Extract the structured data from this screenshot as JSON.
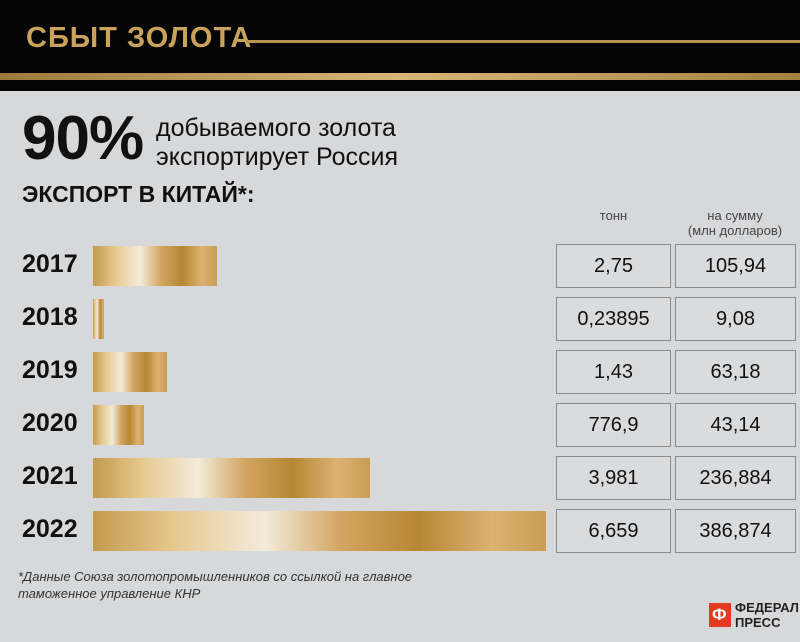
{
  "header": {
    "title": "СБЫТ ЗОЛОТА"
  },
  "headline": {
    "number": "90%",
    "line1": "добываемого золота",
    "line2": "экспортирует Россия"
  },
  "subtitle": "ЭКСПОРТ В КИТАЙ*:",
  "columns": {
    "tons": "тонн",
    "sum_line1": "на сумму",
    "sum_line2": "(млн долларов)"
  },
  "chart_data": {
    "type": "bar",
    "orientation": "horizontal",
    "title": "ЭКСПОРТ В КИТАЙ*:",
    "categories": [
      "2017",
      "2018",
      "2019",
      "2020",
      "2021",
      "2022"
    ],
    "series": [
      {
        "name": "на сумму (млн долларов)",
        "values": [
          105.94,
          9.08,
          63.18,
          43.14,
          236.884,
          386.874
        ]
      }
    ],
    "table": {
      "tons": [
        "2,75",
        "0,23895",
        "1,43",
        "776,9",
        "3,981",
        "6,659"
      ],
      "sum": [
        "105,94",
        "9,08",
        "63,18",
        "43,14",
        "236,884",
        "386,874"
      ]
    }
  },
  "rows": [
    {
      "year": "2017",
      "tons": "2,75",
      "sum": "105,94"
    },
    {
      "year": "2018",
      "tons": "0,23895",
      "sum": "9,08"
    },
    {
      "year": "2019",
      "tons": "1,43",
      "sum": "63,18"
    },
    {
      "year": "2020",
      "tons": "776,9",
      "sum": "43,14"
    },
    {
      "year": "2021",
      "tons": "3,981",
      "sum": "236,884"
    },
    {
      "year": "2022",
      "tons": "6,659",
      "sum": "386,874"
    }
  ],
  "footnote": {
    "line1": "*Данные Союза золотопромышленников со ссылкой на главное",
    "line2": "таможенное управление КНР"
  },
  "logo": {
    "mark": "Ф",
    "line1": "ФЕДЕРАЛ",
    "line2": "ПРЕСС"
  },
  "colors": {
    "gold": "#c9a25c",
    "header_bg": "#050505",
    "background": "#d7d8da",
    "logo_red": "#e53a22"
  }
}
